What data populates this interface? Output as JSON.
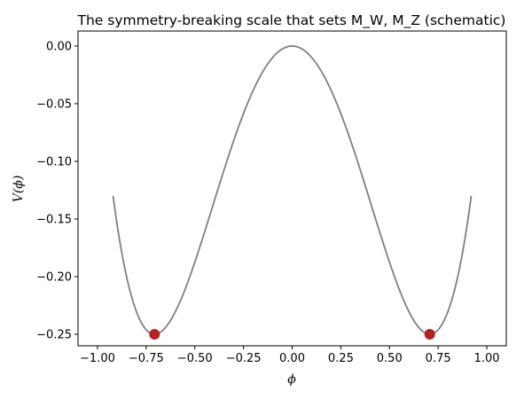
{
  "chart_data": {
    "type": "line",
    "title": "The symmetry-breaking scale that sets M_W, M_Z (schematic)",
    "xlabel": "ϕ",
    "ylabel": "V(ϕ)",
    "xlim": [
      -1.0,
      1.0
    ],
    "ylim": [
      -0.26,
      0.013
    ],
    "grid": false,
    "x_ticks": [
      -1.0,
      -0.75,
      -0.5,
      -0.25,
      0.0,
      0.25,
      0.5,
      0.75,
      1.0
    ],
    "x_tick_labels": [
      "−1.00",
      "−0.75",
      "−0.50",
      "−0.25",
      "0.00",
      "0.25",
      "0.50",
      "0.75",
      "1.00"
    ],
    "y_ticks": [
      0.0,
      -0.05,
      -0.1,
      -0.15,
      -0.2,
      -0.25
    ],
    "y_tick_labels": [
      "0.00",
      "−0.05",
      "−0.10",
      "−0.15",
      "−0.20",
      "−0.25"
    ],
    "series": [
      {
        "function": "V(phi) = -phi^2 + phi^4",
        "x_range": [
          -0.92,
          0.92
        ],
        "color": "#808080"
      }
    ],
    "markers": [
      {
        "x": -0.707,
        "y": -0.25,
        "color": "#b22222"
      },
      {
        "x": 0.707,
        "y": -0.25,
        "color": "#b22222"
      }
    ]
  }
}
